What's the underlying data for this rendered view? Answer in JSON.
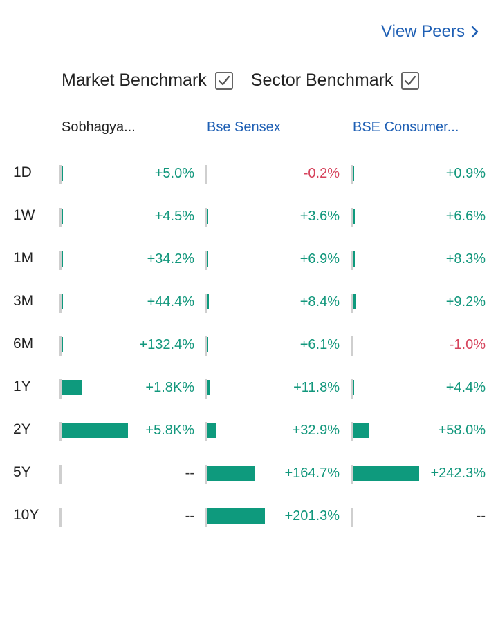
{
  "header": {
    "view_peers_label": "View Peers"
  },
  "benchmarks": [
    {
      "label": "Market Benchmark",
      "checked": true
    },
    {
      "label": "Sector Benchmark",
      "checked": true
    }
  ],
  "columns": [
    {
      "name": "Sobhagya...",
      "is_link": false
    },
    {
      "name": "Bse Sensex",
      "is_link": true
    },
    {
      "name": "BSE Consumer...",
      "is_link": true
    }
  ],
  "rows": [
    {
      "period": "1D",
      "cells": [
        {
          "text": "+5.0%",
          "bar_fraction": 0.005
        },
        {
          "text": "-0.2%",
          "bar_fraction": 0
        },
        {
          "text": "+0.9%",
          "bar_fraction": 0.004
        }
      ]
    },
    {
      "period": "1W",
      "cells": [
        {
          "text": "+4.5%",
          "bar_fraction": 0.005
        },
        {
          "text": "+3.6%",
          "bar_fraction": 0.003
        },
        {
          "text": "+6.6%",
          "bar_fraction": 0.03
        }
      ]
    },
    {
      "period": "1M",
      "cells": [
        {
          "text": "+34.2%",
          "bar_fraction": 0.006
        },
        {
          "text": "+6.9%",
          "bar_fraction": 0.02
        },
        {
          "text": "+8.3%",
          "bar_fraction": 0.03
        }
      ]
    },
    {
      "period": "3M",
      "cells": [
        {
          "text": "+44.4%",
          "bar_fraction": 0.008
        },
        {
          "text": "+8.4%",
          "bar_fraction": 0.03
        },
        {
          "text": "+9.2%",
          "bar_fraction": 0.04
        }
      ]
    },
    {
      "period": "6M",
      "cells": [
        {
          "text": "+132.4%",
          "bar_fraction": 0.023
        },
        {
          "text": "+6.1%",
          "bar_fraction": 0.02
        },
        {
          "text": "-1.0%",
          "bar_fraction": 0
        }
      ]
    },
    {
      "period": "1Y",
      "cells": [
        {
          "text": "+1.8K%",
          "bar_fraction": 0.31
        },
        {
          "text": "+11.8%",
          "bar_fraction": 0.04
        },
        {
          "text": "+4.4%",
          "bar_fraction": 0.02
        }
      ]
    },
    {
      "period": "2Y",
      "cells": [
        {
          "text": "+5.8K%",
          "bar_fraction": 1.0
        },
        {
          "text": "+32.9%",
          "bar_fraction": 0.14
        },
        {
          "text": "+58.0%",
          "bar_fraction": 0.24
        }
      ]
    },
    {
      "period": "5Y",
      "cells": [
        {
          "text": "--",
          "bar_fraction": 0
        },
        {
          "text": "+164.7%",
          "bar_fraction": 0.72
        },
        {
          "text": "+242.3%",
          "bar_fraction": 1.0
        }
      ]
    },
    {
      "period": "10Y",
      "cells": [
        {
          "text": "--",
          "bar_fraction": 0
        },
        {
          "text": "+201.3%",
          "bar_fraction": 0.88
        },
        {
          "text": "--",
          "bar_fraction": 0
        }
      ]
    }
  ],
  "colors": {
    "positive": "#12977c",
    "negative": "#d6435c",
    "bar": "#0e9a7d",
    "link": "#1e5fb4"
  }
}
